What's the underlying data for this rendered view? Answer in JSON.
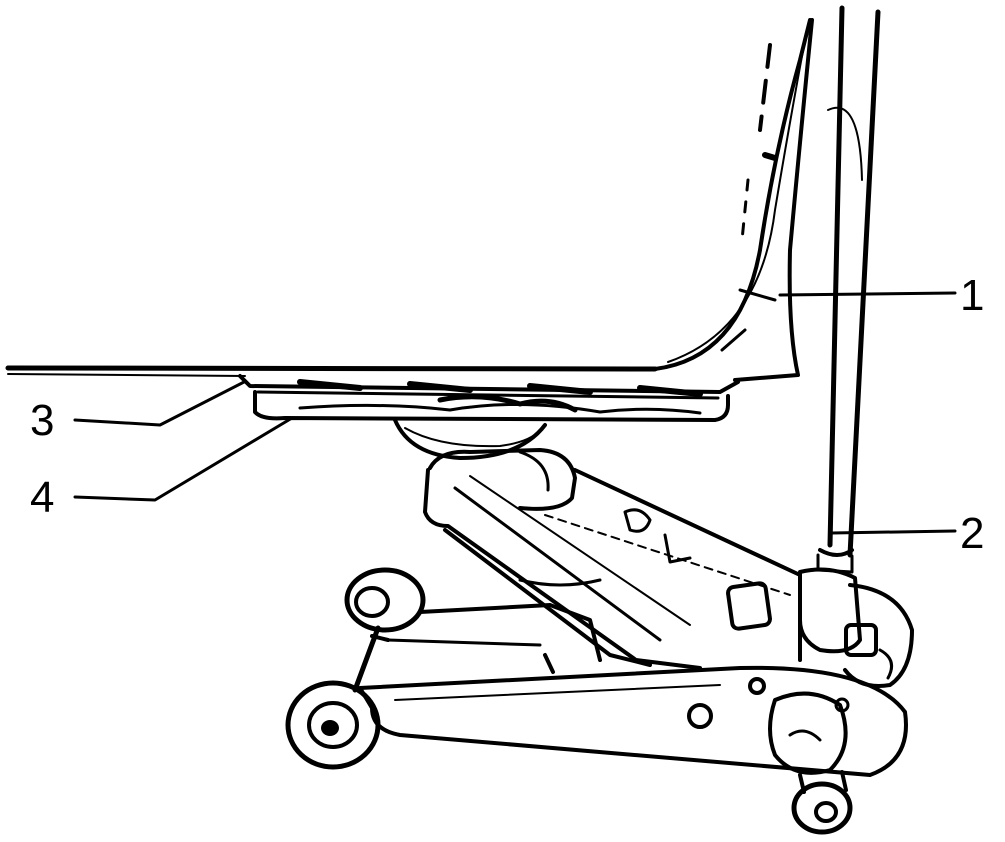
{
  "diagram": {
    "callouts": [
      {
        "id": "1",
        "label": "1"
      },
      {
        "id": "2",
        "label": "2"
      },
      {
        "id": "3",
        "label": "3"
      },
      {
        "id": "4",
        "label": "4"
      }
    ],
    "colors": {
      "ink": "#000000",
      "background": "#ffffff"
    }
  }
}
